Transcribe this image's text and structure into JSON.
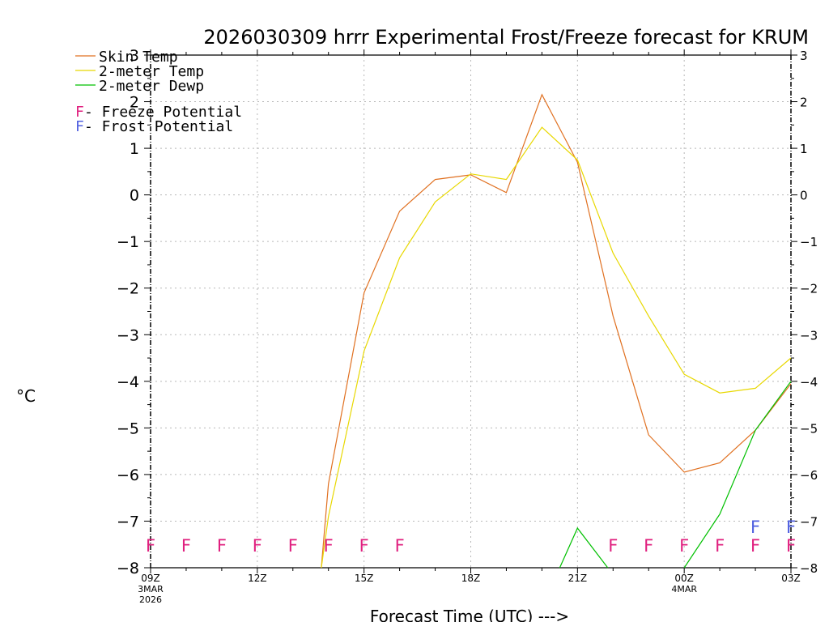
{
  "chart_data": {
    "type": "line",
    "title": "2026030309 hrrr Experimental Frost/Freeze forecast for KRUM",
    "xlabel": "Forecast Time (UTC) --->",
    "ylabel": "°C",
    "ylim": [
      -8,
      3
    ],
    "xlim": [
      0,
      18
    ],
    "grid": true,
    "y_ticks": [
      "3",
      "2",
      "1",
      "0",
      "−1",
      "−2",
      "−3",
      "−4",
      "−5",
      "−6",
      "−7",
      "−8"
    ],
    "y_tick_values": [
      3,
      2,
      1,
      0,
      -1,
      -2,
      -3,
      -4,
      -5,
      -6,
      -7,
      -8
    ],
    "x_ticks": [
      {
        "x": 0,
        "label": "09Z",
        "sub1": "3MAR",
        "sub2": "2026"
      },
      {
        "x": 3,
        "label": "12Z",
        "sub1": "",
        "sub2": ""
      },
      {
        "x": 6,
        "label": "15Z",
        "sub1": "",
        "sub2": ""
      },
      {
        "x": 9,
        "label": "18Z",
        "sub1": "",
        "sub2": ""
      },
      {
        "x": 12,
        "label": "21Z",
        "sub1": "",
        "sub2": ""
      },
      {
        "x": 15,
        "label": "00Z",
        "sub1": "4MAR",
        "sub2": ""
      },
      {
        "x": 18,
        "label": "03Z",
        "sub1": "",
        "sub2": ""
      }
    ],
    "legend": {
      "placement": "top-left",
      "entries": [
        {
          "name": "Skin Temp",
          "color": "#e07020"
        },
        {
          "name": "2-meter Temp",
          "color": "#e8d800"
        },
        {
          "name": "2-meter Dewp",
          "color": "#00c000"
        }
      ],
      "markers": [
        {
          "letter": "F",
          "text": " - Freeze Potential",
          "color": "#e0207f"
        },
        {
          "letter": "F",
          "text": " - Frost Potential",
          "color": "#5060e0"
        }
      ]
    },
    "series": [
      {
        "name": "Skin Temp",
        "color": "#e07020",
        "x": [
          4.8,
          5.0,
          6.0,
          7.0,
          8.0,
          9.0,
          10.0,
          11.0,
          12.0,
          13.0,
          14.0,
          15.0,
          16.0,
          17.0,
          18.0
        ],
        "values": [
          -8.0,
          -6.2,
          -2.1,
          -0.35,
          0.33,
          0.43,
          0.05,
          2.15,
          0.7,
          -2.6,
          -5.15,
          -5.95,
          -5.75,
          -5.05,
          -4.05
        ]
      },
      {
        "name": "2-meter Temp",
        "color": "#e8d800",
        "x": [
          4.8,
          5.0,
          6.0,
          7.0,
          8.0,
          9.0,
          10.0,
          11.0,
          12.0,
          13.0,
          14.0,
          15.0,
          16.0,
          17.0,
          18.0
        ],
        "values": [
          -8.0,
          -6.9,
          -3.35,
          -1.35,
          -0.15,
          0.45,
          0.33,
          1.45,
          0.75,
          -1.25,
          -2.6,
          -3.85,
          -4.25,
          -4.15,
          -3.5
        ]
      },
      {
        "name": "2-meter Dewp",
        "color": "#00c000",
        "segments": [
          {
            "x": [
              11.5,
              12.0,
              12.85
            ],
            "values": [
              -8.0,
              -7.15,
              -8.0
            ]
          },
          {
            "x": [
              15.0,
              16.0,
              17.0,
              18.0
            ],
            "values": [
              -8.0,
              -6.85,
              -5.05,
              -4.0
            ]
          }
        ]
      }
    ],
    "markers": [
      {
        "x": 0,
        "letter": "F",
        "kind": "freeze",
        "color": "#e0207f"
      },
      {
        "x": 1,
        "letter": "F",
        "kind": "freeze",
        "color": "#e0207f"
      },
      {
        "x": 2,
        "letter": "F",
        "kind": "freeze",
        "color": "#e0207f"
      },
      {
        "x": 3,
        "letter": "F",
        "kind": "freeze",
        "color": "#e0207f"
      },
      {
        "x": 4,
        "letter": "F",
        "kind": "freeze",
        "color": "#e0207f"
      },
      {
        "x": 5,
        "letter": "F",
        "kind": "freeze",
        "color": "#e0207f"
      },
      {
        "x": 6,
        "letter": "F",
        "kind": "freeze",
        "color": "#e0207f"
      },
      {
        "x": 7,
        "letter": "F",
        "kind": "freeze",
        "color": "#e0207f"
      },
      {
        "x": 13,
        "letter": "F",
        "kind": "freeze",
        "color": "#e0207f"
      },
      {
        "x": 14,
        "letter": "F",
        "kind": "freeze",
        "color": "#e0207f"
      },
      {
        "x": 15,
        "letter": "F",
        "kind": "freeze",
        "color": "#e0207f"
      },
      {
        "x": 16,
        "letter": "F",
        "kind": "freeze",
        "color": "#e0207f"
      },
      {
        "x": 17,
        "letter": "F",
        "kind": "freeze",
        "color": "#e0207f"
      },
      {
        "x": 18,
        "letter": "F",
        "kind": "freeze",
        "color": "#e0207f"
      },
      {
        "x": 17,
        "letter": "F",
        "kind": "frost",
        "color": "#5060e0"
      },
      {
        "x": 18,
        "letter": "F",
        "kind": "frost",
        "color": "#5060e0"
      }
    ]
  }
}
